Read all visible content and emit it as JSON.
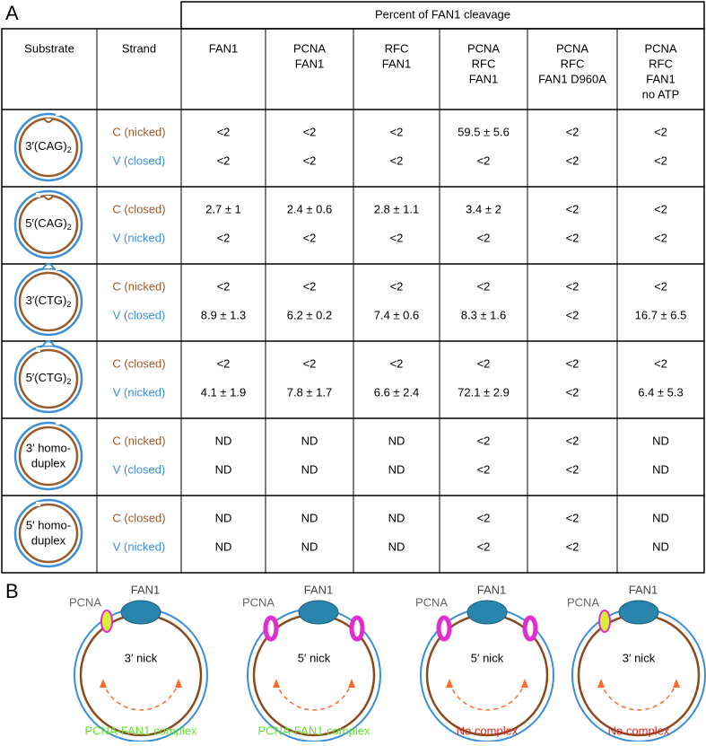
{
  "panel_a": {
    "label": "A",
    "header": "Percent of FAN1 cleavage",
    "columns": [
      [
        "Substrate"
      ],
      [
        "Strand"
      ],
      [
        "FAN1"
      ],
      [
        "PCNA",
        "FAN1"
      ],
      [
        "RFC",
        "FAN1"
      ],
      [
        "PCNA",
        "RFC",
        "FAN1"
      ],
      [
        "PCNA",
        "RFC",
        "FAN1 D960A"
      ],
      [
        "PCNA",
        "RFC",
        "FAN1",
        "no ATP"
      ]
    ],
    "rows": [
      {
        "substrate": {
          "text": "3′(CAG)",
          "sub": "2"
        },
        "strands": [
          {
            "label": "C (nicked)",
            "values": [
              "<2",
              "<2",
              "<2",
              "59.5 ± 5.6",
              "<2",
              "<2"
            ]
          },
          {
            "label": "V (closed)",
            "values": [
              "<2",
              "<2",
              "<2",
              "<2",
              "<2",
              "<2"
            ]
          }
        ]
      },
      {
        "substrate": {
          "text": "5′(CAG)",
          "sub": "2"
        },
        "strands": [
          {
            "label": "C (closed)",
            "values": [
              "2.7 ± 1",
              "2.4 ±  0.6",
              "2.8 ± 1.1",
              "3.4 ± 2",
              "<2",
              "<2"
            ]
          },
          {
            "label": "V (nicked)",
            "values": [
              "<2",
              "<2",
              "<2",
              "<2",
              "<2",
              "<2"
            ]
          }
        ]
      },
      {
        "substrate": {
          "text": "3′(CTG)",
          "sub": "2"
        },
        "strands": [
          {
            "label": "C (nicked)",
            "values": [
              "<2",
              "<2",
              "<2",
              "<2",
              "<2",
              "<2"
            ]
          },
          {
            "label": "V (closed)",
            "values": [
              "8.9 ± 1.3",
              "6.2 ± 0.2",
              "7.4 ± 0.6",
              "8.3 ± 1.6",
              "<2",
              "16.7 ± 6.5"
            ]
          }
        ]
      },
      {
        "substrate": {
          "text": "5′(CTG)",
          "sub": "2"
        },
        "strands": [
          {
            "label": "C (closed)",
            "values": [
              "<2",
              "<2",
              "<2",
              "<2",
              "<2",
              "<2"
            ]
          },
          {
            "label": "V (nicked)",
            "values": [
              "4.1 ± 1.9",
              "7.8 ± 1.7",
              "6.6 ± 2.4",
              "72.1 ± 2.9",
              "<2",
              "6.4 ± 5.3"
            ]
          }
        ]
      },
      {
        "substrate": {
          "lines": [
            "3′ homo-",
            "duplex"
          ]
        },
        "strands": [
          {
            "label": "C (nicked)",
            "values": [
              "ND",
              "ND",
              "ND",
              "<2",
              "<2",
              "ND"
            ]
          },
          {
            "label": "V (closed)",
            "values": [
              "ND",
              "ND",
              "ND",
              "<2",
              "<2",
              "ND"
            ]
          }
        ]
      },
      {
        "substrate": {
          "lines": [
            "5′ homo-",
            "duplex"
          ]
        },
        "strands": [
          {
            "label": "C (closed)",
            "values": [
              "ND",
              "ND",
              "ND",
              "<2",
              "<2",
              "ND"
            ]
          },
          {
            "label": "V (nicked)",
            "values": [
              "ND",
              "ND",
              "ND",
              "<2",
              "<2",
              "ND"
            ]
          }
        ]
      }
    ]
  },
  "panel_b": {
    "label": "B",
    "diagrams": [
      {
        "pcna": "PCNA",
        "fan1": "FAN1",
        "nick": "3′ nick",
        "caption": "PCNA-FAN1 complex",
        "caption_color": "#5ee62a"
      },
      {
        "pcna": "PCNA",
        "fan1": "FAN1",
        "nick": "5′ nick",
        "caption": "PCNA-FAN1 complex",
        "caption_color": "#5ee62a"
      },
      {
        "pcna": "PCNA",
        "fan1": "FAN1",
        "nick": "5′ nick",
        "caption": "No complex",
        "caption_color": "#d9241c"
      },
      {
        "pcna": "PCNA",
        "fan1": "FAN1",
        "nick": "3′ nick",
        "caption": "No complex",
        "caption_color": "#d9241c"
      }
    ]
  }
}
